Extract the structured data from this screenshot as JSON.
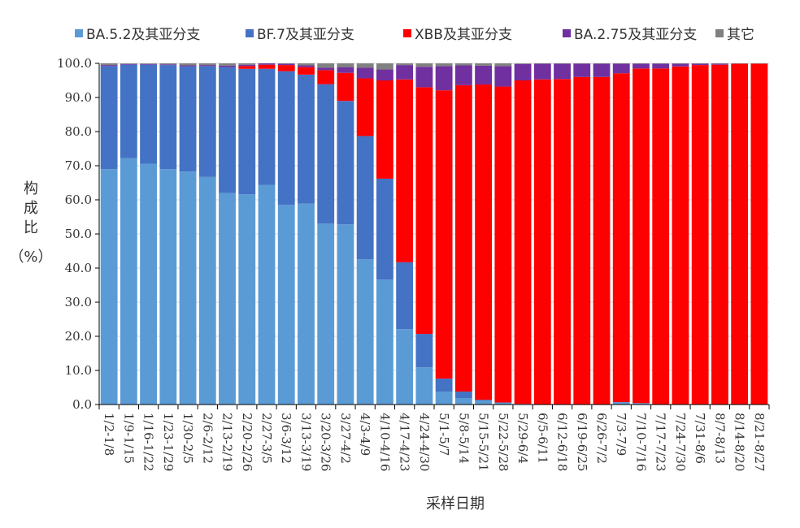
{
  "chart_data": {
    "type": "bar",
    "stacked": true,
    "xlabel": "采样日期",
    "ylabel_lines": [
      "构",
      "成",
      "比",
      "（%）"
    ],
    "ylim": [
      0,
      100
    ],
    "yticks": [
      "0.0",
      "10.0",
      "20.0",
      "30.0",
      "40.0",
      "50.0",
      "60.0",
      "70.0",
      "80.0",
      "90.0",
      "100.0"
    ],
    "legend_position": "top",
    "categories": [
      "1/2-1/8",
      "1/9-1/15",
      "1/16-1/22",
      "1/23-1/29",
      "1/30-2/5",
      "2/6-2/12",
      "2/13-2/19",
      "2/20-2/26",
      "2/27-3/5",
      "3/6-3/12",
      "3/13-3/19",
      "3/20-3/26",
      "3/27-4/2",
      "4/3-4/9",
      "4/10-4/16",
      "4/17-4/23",
      "4/24-4/30",
      "5/1-5/7",
      "5/8-5/14",
      "5/15-5/21",
      "5/22-5/28",
      "5/29-6/4",
      "6/5-6/11",
      "6/12-6/18",
      "6/19-6/25",
      "6/26-7/2",
      "7/3-7/9",
      "7/10-7/16",
      "7/17-7/23",
      "7/24-7/30",
      "7/31-8/6",
      "8/7-8/13",
      "8/14-8/20",
      "8/21-8/27"
    ],
    "series": [
      {
        "name": "BA.5.2及其亚分支",
        "color": "#5b9bd5",
        "values": [
          69.0,
          72.2,
          70.6,
          69.0,
          68.3,
          66.7,
          62.0,
          61.6,
          64.4,
          58.5,
          58.9,
          53.1,
          52.8,
          42.6,
          36.6,
          22.1,
          10.9,
          3.8,
          1.9,
          1.1,
          0.5,
          0.2,
          0.1,
          0.1,
          0.1,
          0.1,
          0.7,
          0.4,
          0.1,
          0.1,
          0.1,
          0.1,
          0.1,
          0.1
        ]
      },
      {
        "name": "BF.7及其亚分支",
        "color": "#4472c4",
        "values": [
          30.2,
          27.4,
          29.0,
          30.5,
          30.8,
          32.5,
          36.9,
          36.8,
          34.0,
          39.2,
          37.8,
          40.8,
          36.2,
          36.1,
          29.6,
          19.6,
          9.8,
          3.8,
          1.9,
          0.3,
          0.1,
          0.0,
          0.0,
          0.0,
          0.0,
          0.0,
          0.0,
          0.0,
          0.0,
          0.0,
          0.0,
          0.0,
          0.0,
          0.0
        ]
      },
      {
        "name": "XBB及其亚分支",
        "color": "#ff0000",
        "values": [
          0.0,
          0.0,
          0.0,
          0.0,
          0.0,
          0.0,
          0.0,
          0.8,
          1.2,
          1.8,
          2.2,
          4.1,
          8.2,
          16.9,
          28.8,
          53.6,
          72.3,
          84.5,
          89.8,
          92.4,
          92.6,
          94.8,
          95.2,
          95.3,
          95.9,
          95.9,
          96.4,
          98.1,
          98.4,
          99.0,
          99.4,
          99.5,
          99.8,
          99.8
        ]
      },
      {
        "name": "BA.2.75及其亚分支",
        "color": "#7030a0",
        "values": [
          0.3,
          0.2,
          0.2,
          0.2,
          0.3,
          0.3,
          0.4,
          0.4,
          0.4,
          0.4,
          0.5,
          0.7,
          1.7,
          3.1,
          3.2,
          4.2,
          6.0,
          7.1,
          5.8,
          5.5,
          6.0,
          4.8,
          4.6,
          4.5,
          3.9,
          3.9,
          2.8,
          1.4,
          1.4,
          0.8,
          0.4,
          0.3,
          0.0,
          0.0
        ]
      },
      {
        "name": "其它",
        "color": "#808080",
        "values": [
          0.5,
          0.2,
          0.2,
          0.3,
          0.6,
          0.5,
          0.7,
          0.4,
          0.0,
          0.1,
          0.6,
          1.3,
          1.1,
          1.3,
          1.8,
          0.5,
          1.0,
          0.8,
          0.6,
          0.7,
          0.8,
          0.2,
          0.1,
          0.1,
          0.1,
          0.1,
          0.1,
          0.1,
          0.1,
          0.1,
          0.1,
          0.1,
          0.1,
          0.1
        ]
      }
    ]
  }
}
